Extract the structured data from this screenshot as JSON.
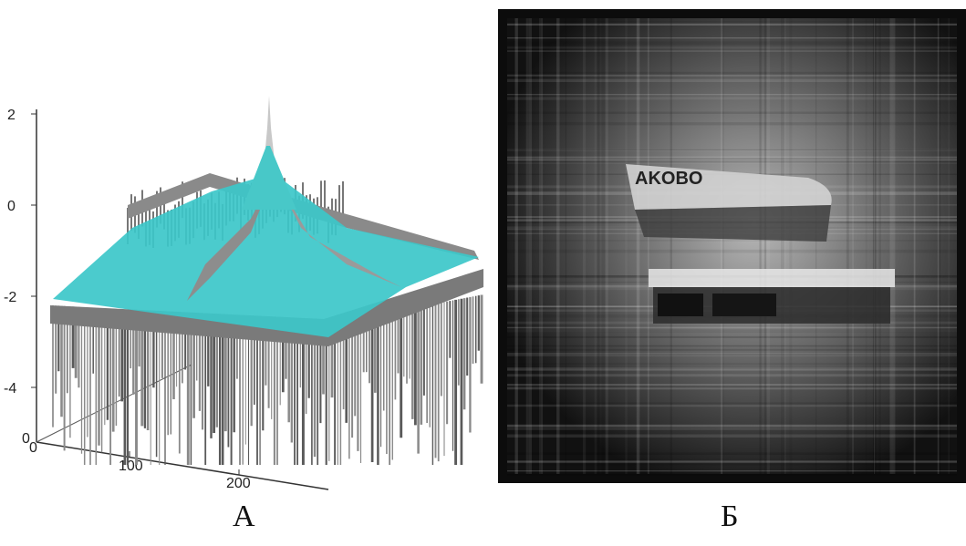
{
  "panel_a": {
    "label": "А",
    "z_ticks": [
      "2",
      "0",
      "-2",
      "-4"
    ],
    "x_ticks": [
      "100",
      "200"
    ],
    "origin_ticks": [
      "0",
      "0"
    ],
    "surface_color": "#3cc7c9",
    "edge_color": "#6e6e6e"
  },
  "panel_b": {
    "label": "Б",
    "plane_text": "AKOBO",
    "background_color": "#0c0c0c"
  }
}
